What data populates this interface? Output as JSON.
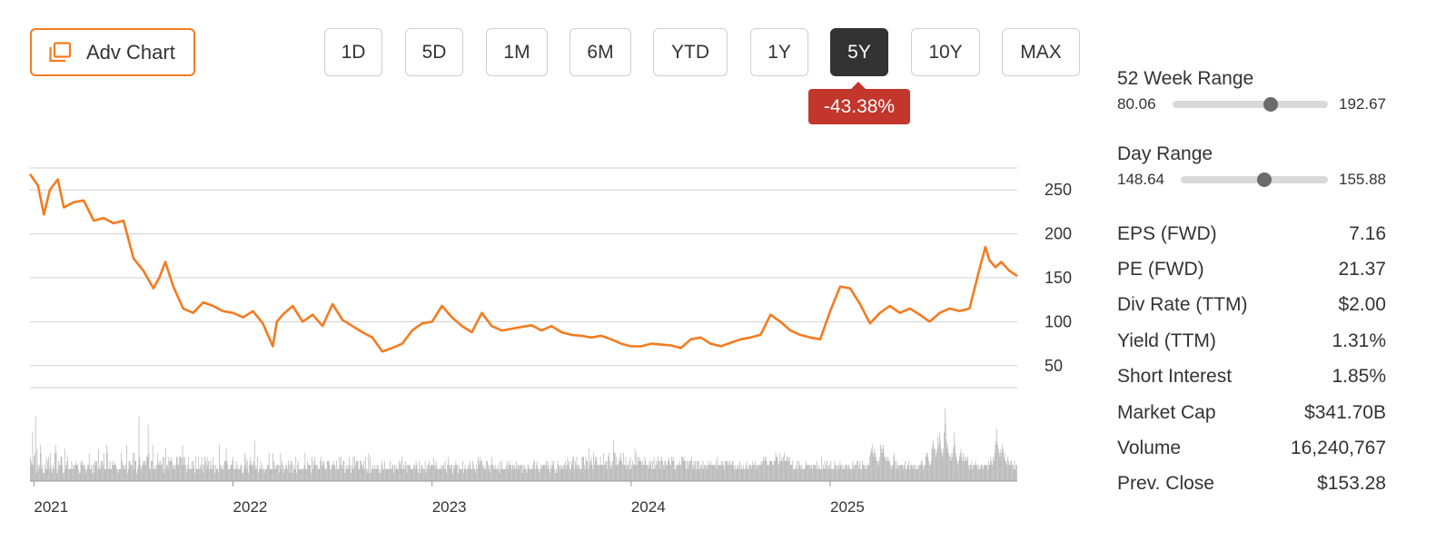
{
  "toolbar": {
    "adv_chart_label": "Adv Chart",
    "ranges": [
      "1D",
      "5D",
      "1M",
      "6M",
      "YTD",
      "1Y",
      "5Y",
      "10Y",
      "MAX"
    ],
    "active_range": "5Y",
    "change": "-43.38%",
    "change_color": "#c2362b"
  },
  "colors": {
    "line": "#f47b20",
    "volume": "#b3b3b3",
    "grid": "#d0d0d0",
    "accent": "#f47b20"
  },
  "stats": {
    "week52": {
      "label": "52 Week Range",
      "low": "80.06",
      "high": "192.67",
      "position": 0.63
    },
    "day": {
      "label": "Day Range",
      "low": "148.64",
      "high": "155.88",
      "position": 0.57
    },
    "rows": [
      {
        "label": "EPS (FWD)",
        "value": "7.16"
      },
      {
        "label": "PE (FWD)",
        "value": "21.37"
      },
      {
        "label": "Div Rate (TTM)",
        "value": "$2.00"
      },
      {
        "label": "Yield (TTM)",
        "value": "1.31%"
      },
      {
        "label": "Short Interest",
        "value": "1.85%"
      },
      {
        "label": "Market Cap",
        "value": "$341.70B"
      },
      {
        "label": "Volume",
        "value": "16,240,767"
      },
      {
        "label": "Prev. Close",
        "value": "$153.28"
      }
    ]
  },
  "chart_data": {
    "type": "line",
    "title": "",
    "xlabel": "",
    "ylabel": "",
    "y_ticks": [
      250,
      200,
      150,
      100,
      50
    ],
    "ylim": [
      25,
      275
    ],
    "x_ticks": [
      "2021",
      "2022",
      "2023",
      "2024",
      "2025"
    ],
    "xlim": [
      2020.98,
      2025.94
    ],
    "grid": true,
    "series": [
      {
        "x": [
          2020.98,
          2021.02,
          2021.05,
          2021.08,
          2021.12,
          2021.15,
          2021.2,
          2021.25,
          2021.3,
          2021.35,
          2021.4,
          2021.45,
          2021.5,
          2021.55,
          2021.6,
          2021.63,
          2021.66,
          2021.7,
          2021.75,
          2021.8,
          2021.85,
          2021.9,
          2021.95,
          2022.0,
          2022.05,
          2022.1,
          2022.15,
          2022.2,
          2022.22,
          2022.25,
          2022.3,
          2022.35,
          2022.4,
          2022.45,
          2022.5,
          2022.55,
          2022.6,
          2022.65,
          2022.7,
          2022.75,
          2022.8,
          2022.85,
          2022.9,
          2022.95,
          2023.0,
          2023.05,
          2023.1,
          2023.15,
          2023.2,
          2023.25,
          2023.3,
          2023.35,
          2023.4,
          2023.45,
          2023.5,
          2023.55,
          2023.6,
          2023.65,
          2023.7,
          2023.75,
          2023.8,
          2023.85,
          2023.9,
          2023.95,
          2024.0,
          2024.05,
          2024.1,
          2024.15,
          2024.2,
          2024.25,
          2024.3,
          2024.35,
          2024.4,
          2024.45,
          2024.5,
          2024.55,
          2024.6,
          2024.65,
          2024.7,
          2024.75,
          2024.8,
          2024.85,
          2024.9,
          2024.95,
          2025.0,
          2025.05,
          2025.1,
          2025.15,
          2025.2,
          2025.25,
          2025.3,
          2025.35,
          2025.4,
          2025.45,
          2025.5,
          2025.55,
          2025.6,
          2025.65,
          2025.7,
          2025.75,
          2025.78,
          2025.8,
          2025.83,
          2025.86,
          2025.9,
          2025.94
        ],
        "y": [
          268,
          255,
          222,
          250,
          262,
          230,
          236,
          238,
          215,
          218,
          212,
          215,
          172,
          158,
          138,
          150,
          168,
          140,
          115,
          110,
          122,
          118,
          112,
          110,
          105,
          112,
          98,
          72,
          100,
          108,
          118,
          100,
          108,
          95,
          120,
          102,
          95,
          88,
          82,
          66,
          70,
          75,
          90,
          98,
          100,
          118,
          105,
          95,
          88,
          110,
          95,
          90,
          92,
          94,
          96,
          90,
          95,
          88,
          85,
          84,
          82,
          84,
          80,
          75,
          72,
          72,
          75,
          74,
          73,
          70,
          80,
          82,
          75,
          72,
          76,
          80,
          82,
          85,
          108,
          100,
          90,
          85,
          82,
          80,
          112,
          140,
          138,
          120,
          98,
          110,
          118,
          110,
          115,
          108,
          100,
          110,
          115,
          112,
          115,
          160,
          185,
          170,
          162,
          168,
          158,
          152
        ]
      }
    ],
    "volume": [
      6,
      5,
      4,
      12,
      4,
      6,
      7,
      16,
      2,
      8,
      4,
      3,
      4,
      9,
      7,
      3,
      4,
      2,
      2,
      4,
      3,
      6,
      3,
      5,
      6,
      3,
      7,
      4,
      2,
      3,
      4,
      3,
      7,
      9,
      7,
      2,
      3,
      5,
      4,
      4,
      6,
      6,
      4,
      2,
      2,
      8,
      3,
      4,
      5,
      6,
      3,
      3,
      3,
      3,
      5,
      3,
      4,
      3,
      4,
      4,
      5,
      4,
      4,
      3,
      2,
      2,
      5,
      4,
      5,
      4,
      4,
      4,
      3,
      2,
      3,
      4,
      4,
      7,
      3,
      3,
      4,
      2,
      4,
      2,
      5,
      4,
      5,
      5,
      3,
      8,
      3,
      4,
      3,
      5,
      5,
      4,
      7,
      3,
      3,
      3,
      9,
      7,
      3,
      3,
      5,
      3,
      3,
      5,
      4,
      4,
      5,
      4,
      4,
      3,
      3,
      2,
      3,
      3,
      3,
      7,
      5,
      4,
      3,
      4,
      3,
      4,
      9,
      2,
      3,
      5,
      5,
      4,
      4,
      4,
      7,
      3,
      7,
      5,
      5,
      2,
      3,
      4,
      16,
      6,
      4,
      3,
      4,
      5,
      4,
      5,
      5,
      4,
      6,
      6,
      14,
      7,
      3,
      3,
      5,
      5,
      9,
      3,
      3,
      4,
      3,
      4,
      7,
      4,
      5,
      4,
      5,
      4,
      4,
      6,
      2,
      6,
      3,
      8,
      4,
      4,
      3,
      6,
      5,
      5,
      6,
      5,
      3,
      4,
      4,
      3,
      4,
      6,
      6,
      4,
      4,
      6,
      6,
      6,
      4,
      9,
      6,
      4,
      6,
      4,
      2,
      3,
      4,
      6,
      3,
      3,
      3,
      5,
      3,
      5,
      4,
      2,
      6,
      3,
      3,
      3,
      6,
      3,
      4,
      3,
      6,
      4,
      2,
      4,
      6,
      5,
      3,
      6,
      4,
      5,
      3,
      5,
      3,
      4,
      3,
      6,
      4,
      2,
      4,
      3,
      3,
      3,
      2,
      9,
      4,
      3,
      4,
      3,
      3,
      4,
      5,
      5,
      8,
      5,
      4,
      3,
      3,
      3,
      4,
      4,
      5,
      6,
      3,
      3,
      3,
      5,
      3,
      4,
      3,
      3,
      3,
      4,
      4,
      2,
      2,
      3,
      7,
      4,
      6,
      3,
      5,
      2,
      4,
      6,
      4,
      5,
      4,
      4,
      5,
      10,
      3,
      4,
      3,
      6,
      2,
      3,
      3,
      5,
      3,
      4,
      3,
      3,
      2,
      3,
      3,
      3,
      4,
      4,
      7,
      3,
      3,
      3,
      3,
      7,
      5,
      3,
      4,
      3,
      4,
      4,
      4,
      2,
      4,
      7,
      3,
      5,
      4,
      2,
      3,
      3,
      4,
      4,
      3,
      5,
      4,
      2,
      5,
      4,
      5,
      2,
      4,
      3,
      3,
      6,
      2,
      4,
      5,
      3,
      3,
      3,
      3,
      3,
      3,
      3,
      4,
      7,
      3,
      3,
      5,
      4,
      4,
      4,
      4,
      2,
      6,
      3,
      5,
      4,
      6,
      4,
      4,
      4,
      3,
      3,
      3,
      5,
      6,
      4,
      5,
      4,
      5,
      3,
      3,
      3,
      5,
      5,
      5,
      4,
      3,
      3,
      4,
      4,
      5,
      4,
      4,
      3,
      5,
      3,
      3,
      3,
      6,
      4,
      6,
      4,
      3,
      5,
      5,
      2,
      3,
      4,
      3,
      4,
      3,
      6,
      4,
      2,
      4,
      3,
      6,
      3,
      6,
      4,
      5,
      5,
      5,
      3,
      3,
      5,
      5,
      4,
      4,
      3,
      5,
      3,
      6,
      3,
      2,
      3,
      7,
      2,
      6,
      2,
      3,
      4,
      3,
      3,
      4,
      3,
      3,
      4,
      3,
      4,
      2,
      3,
      2,
      4,
      5,
      3,
      3,
      5,
      3,
      3,
      3,
      3,
      3,
      3,
      5,
      3,
      3,
      4,
      4,
      2,
      4,
      3,
      4,
      3,
      3,
      3,
      5,
      4,
      5,
      3,
      6,
      3,
      4,
      3,
      5,
      4,
      2,
      4,
      4,
      4,
      4,
      3,
      3,
      3,
      3,
      4,
      4,
      3,
      5,
      4,
      3,
      2,
      5,
      3,
      2,
      4,
      4,
      3,
      3,
      3,
      5,
      2,
      3,
      4,
      4,
      5,
      3,
      4,
      4,
      4,
      4,
      6,
      4,
      3,
      5,
      4,
      3,
      3,
      3,
      3,
      3,
      4,
      3,
      4,
      4,
      3,
      5,
      3,
      2,
      4,
      6,
      4,
      4,
      3,
      4,
      4,
      2,
      4,
      3,
      4,
      5,
      4,
      4,
      2,
      4,
      3,
      3,
      3,
      3,
      5,
      2,
      3,
      4,
      3,
      3,
      3,
      4,
      3,
      4,
      5,
      3,
      3,
      5,
      4,
      3,
      3,
      2,
      4,
      3,
      6,
      5,
      4,
      6,
      5,
      5,
      4,
      3,
      4,
      3,
      3,
      5,
      5,
      4,
      3,
      4,
      2,
      4,
      6,
      4,
      4,
      3,
      3,
      4,
      3,
      3,
      4,
      3,
      2,
      5,
      3,
      5,
      3,
      3,
      3,
      3,
      3,
      4,
      5,
      3,
      4,
      5,
      4,
      4,
      3,
      4,
      4,
      3,
      4,
      3,
      5,
      3,
      4,
      4,
      3,
      4,
      4,
      4,
      2,
      4,
      3,
      4,
      3,
      3,
      2,
      4,
      4,
      3,
      3,
      3,
      3,
      4,
      3,
      5,
      5,
      3,
      4,
      5,
      3,
      3,
      2,
      3,
      4,
      3,
      4,
      4,
      4,
      4,
      4,
      5,
      3,
      5,
      4,
      3,
      2,
      4,
      3,
      5,
      4,
      5,
      3,
      2,
      3,
      2,
      5,
      4,
      4,
      3,
      4,
      3,
      4,
      3,
      4,
      4,
      5,
      3,
      4,
      6,
      4,
      5,
      3,
      3,
      5,
      4,
      6,
      6,
      3,
      5,
      4,
      6,
      3,
      4,
      4,
      3,
      3,
      3,
      6,
      6,
      6,
      4,
      3,
      6,
      5,
      5,
      3,
      8,
      4,
      5,
      6,
      4,
      3,
      7,
      4,
      6,
      5,
      6,
      4,
      4,
      4,
      4,
      6,
      4,
      4,
      4,
      7,
      4,
      4,
      5,
      5,
      3,
      6,
      7,
      5,
      3,
      4,
      4,
      5,
      10,
      7,
      7,
      4,
      6,
      4,
      4,
      5,
      6,
      5,
      7,
      5,
      4,
      7,
      4,
      4,
      6,
      3,
      4,
      4,
      5,
      3,
      6,
      3,
      4,
      5,
      4,
      4,
      8,
      4,
      7,
      4,
      6,
      5,
      6,
      5,
      5,
      4,
      5,
      4,
      4,
      6,
      5,
      4,
      4,
      4,
      3,
      5,
      4,
      5,
      3,
      5,
      3,
      6,
      3,
      4,
      5,
      4,
      6,
      5,
      5,
      3,
      5,
      6,
      5,
      4,
      3,
      5,
      5,
      4,
      4,
      5,
      6,
      5,
      4,
      4,
      6,
      5,
      6,
      5,
      3,
      3,
      4,
      4,
      4,
      4,
      5,
      4,
      4,
      6,
      6,
      5,
      6,
      5,
      5,
      3,
      5,
      3,
      5,
      4,
      5,
      5,
      6,
      4,
      3,
      5,
      4,
      5,
      3,
      5,
      5,
      3,
      5,
      3,
      4,
      4,
      3,
      5,
      3,
      4,
      4,
      4,
      3,
      4,
      5,
      4,
      4,
      5,
      4,
      4,
      4,
      4,
      4,
      4,
      5,
      3,
      6,
      4,
      4,
      4,
      4,
      5,
      4,
      5,
      4,
      3,
      5,
      5,
      5,
      4,
      5,
      4,
      5,
      4,
      4,
      5,
      5,
      4,
      3,
      4,
      3,
      3,
      4,
      4,
      3,
      5,
      3,
      4,
      3,
      3,
      4,
      3,
      3,
      4,
      5,
      3,
      3,
      4,
      4,
      4,
      3,
      4,
      5,
      4,
      4,
      5,
      4,
      3,
      4,
      4,
      4,
      4,
      4,
      5,
      4,
      5,
      6,
      5,
      6,
      6,
      5,
      4,
      4,
      4,
      5,
      5,
      5,
      5,
      4,
      4,
      5,
      5,
      7,
      6,
      6,
      5,
      4,
      7,
      5,
      5,
      6,
      5,
      6,
      7,
      5,
      5,
      5,
      6,
      6,
      5,
      6,
      4,
      4,
      4,
      5,
      3,
      3,
      3,
      4,
      3,
      5,
      3,
      5,
      4,
      4,
      3,
      4,
      3,
      3,
      3,
      3,
      4,
      5,
      4,
      4,
      4,
      4,
      3,
      4,
      4,
      3,
      4,
      4,
      4,
      4,
      3,
      5,
      3,
      4,
      3,
      3,
      3,
      6,
      3,
      4,
      3,
      5,
      3,
      4,
      5,
      3,
      4,
      4,
      3,
      5,
      3,
      3,
      3,
      3,
      5,
      4,
      4,
      3,
      4,
      4,
      3,
      5,
      4,
      4,
      3,
      4,
      3,
      3,
      4,
      4,
      4,
      3,
      4,
      4,
      3,
      3,
      3,
      4,
      5,
      3,
      4,
      4,
      4,
      5,
      5,
      3,
      4,
      5,
      3,
      3,
      5,
      4,
      4,
      4,
      3,
      4,
      3,
      4,
      4,
      4,
      6,
      7,
      8,
      9,
      7,
      6,
      8,
      7,
      6,
      5,
      5,
      4,
      5,
      6,
      9,
      8,
      7,
      9,
      8,
      6,
      6,
      5,
      6,
      5,
      6,
      5,
      5,
      4,
      3,
      4,
      4,
      6,
      7,
      5,
      3,
      5,
      4,
      3,
      4,
      4,
      4,
      4,
      4,
      4,
      3,
      4,
      5,
      3,
      3,
      4,
      4,
      5,
      3,
      4,
      4,
      4,
      3,
      4,
      4,
      3,
      4,
      3,
      3,
      3,
      4,
      4,
      4,
      5,
      5,
      4,
      3,
      4,
      4,
      6,
      7,
      7,
      6,
      5,
      4,
      4,
      5,
      8,
      9,
      10,
      8,
      8,
      6,
      7,
      8,
      11,
      9,
      12,
      10,
      8,
      7,
      6,
      8,
      12,
      18,
      14,
      10,
      8,
      9,
      7,
      6,
      6,
      5,
      7,
      6,
      8,
      12,
      9,
      7,
      6,
      5,
      4,
      5,
      6,
      7,
      8,
      6,
      5,
      7,
      5,
      6,
      5,
      6,
      5,
      6,
      4,
      3,
      4,
      4,
      5,
      3,
      4,
      4,
      4,
      5,
      4,
      4,
      3,
      4,
      3,
      3,
      4,
      4,
      4,
      3,
      4,
      4,
      4,
      4,
      4,
      3,
      5,
      4,
      4,
      6,
      5,
      4,
      6,
      5,
      7,
      9,
      10,
      13,
      9,
      8,
      7,
      6,
      8,
      7,
      9,
      8,
      6,
      7,
      5,
      5,
      4,
      6,
      5,
      4,
      4,
      5,
      5,
      4,
      4,
      3,
      5,
      3,
      4,
      4
    ]
  }
}
